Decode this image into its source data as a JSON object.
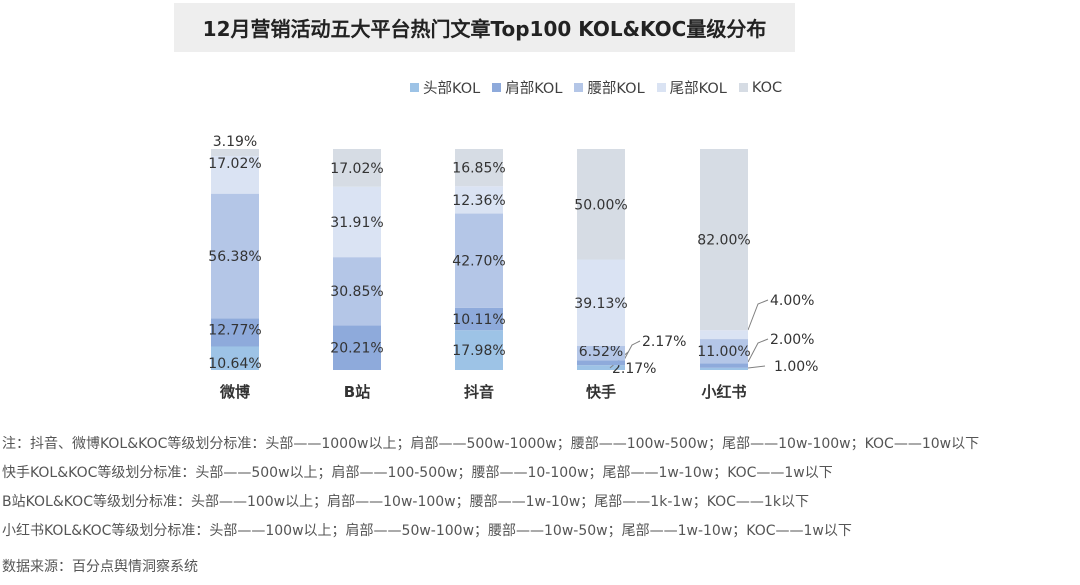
{
  "title": "12月营销活动五大平台热门文章Top100  KOL&KOC量级分布",
  "legend": [
    {
      "name": "头部KOL",
      "color": "#9dc3e6"
    },
    {
      "name": "肩部KOL",
      "color": "#8eaadb"
    },
    {
      "name": "腰部KOL",
      "color": "#b4c6e7"
    },
    {
      "name": "尾部KOL",
      "color": "#dae3f3"
    },
    {
      "name": "KOC",
      "color": "#d6dce4"
    }
  ],
  "chart_data": {
    "type": "bar",
    "stacked": true,
    "percent": true,
    "categories": [
      "微博",
      "B站",
      "抖音",
      "快手",
      "小红书"
    ],
    "series": [
      {
        "name": "头部KOL",
        "values": [
          10.64,
          0,
          17.98,
          2.17,
          1.0
        ]
      },
      {
        "name": "肩部KOL",
        "values": [
          12.77,
          20.21,
          10.11,
          2.17,
          2.0
        ]
      },
      {
        "name": "腰部KOL",
        "values": [
          56.38,
          30.85,
          42.7,
          6.52,
          11.0
        ]
      },
      {
        "name": "尾部KOL",
        "values": [
          17.02,
          31.91,
          12.36,
          39.13,
          4.0
        ]
      },
      {
        "name": "KOC",
        "values": [
          3.19,
          17.02,
          16.85,
          50.0,
          82.0
        ]
      }
    ],
    "data_labels": [
      [
        "10.64%",
        "12.77%",
        "56.38%",
        "17.02%",
        "3.19%"
      ],
      [
        "",
        "20.21%",
        "30.85%",
        "31.91%",
        "17.02%"
      ],
      [
        "17.98%",
        "10.11%",
        "42.70%",
        "12.36%",
        "16.85%"
      ],
      [
        "2.17%",
        "2.17%",
        "6.52%",
        "39.13%",
        "50.00%"
      ],
      [
        "1.00%",
        "2.00%",
        "11.00%",
        "4.00%",
        "82.00%"
      ]
    ],
    "ylim": [
      0,
      100
    ]
  },
  "notes": [
    "注：抖音、微博KOL&KOC等级划分标准：头部——1000w以上；肩部——500w-1000w；腰部——100w-500w；尾部——10w-100w；KOC——10w以下",
    "快手KOL&KOC等级划分标准：头部——500w以上；肩部——100-500w；腰部——10-100w；尾部——1w-10w；KOC——1w以下",
    "B站KOL&KOC等级划分标准：头部——100w以上；肩部——10w-100w；腰部——1w-10w；尾部——1k-1w；KOC——1k以下",
    "小红书KOL&KOC等级划分标准：头部——100w以上；肩部——50w-100w；腰部——10w-50w；尾部——1w-10w；KOC——1w以下"
  ],
  "source": "数据来源：百分点舆情洞察系统"
}
